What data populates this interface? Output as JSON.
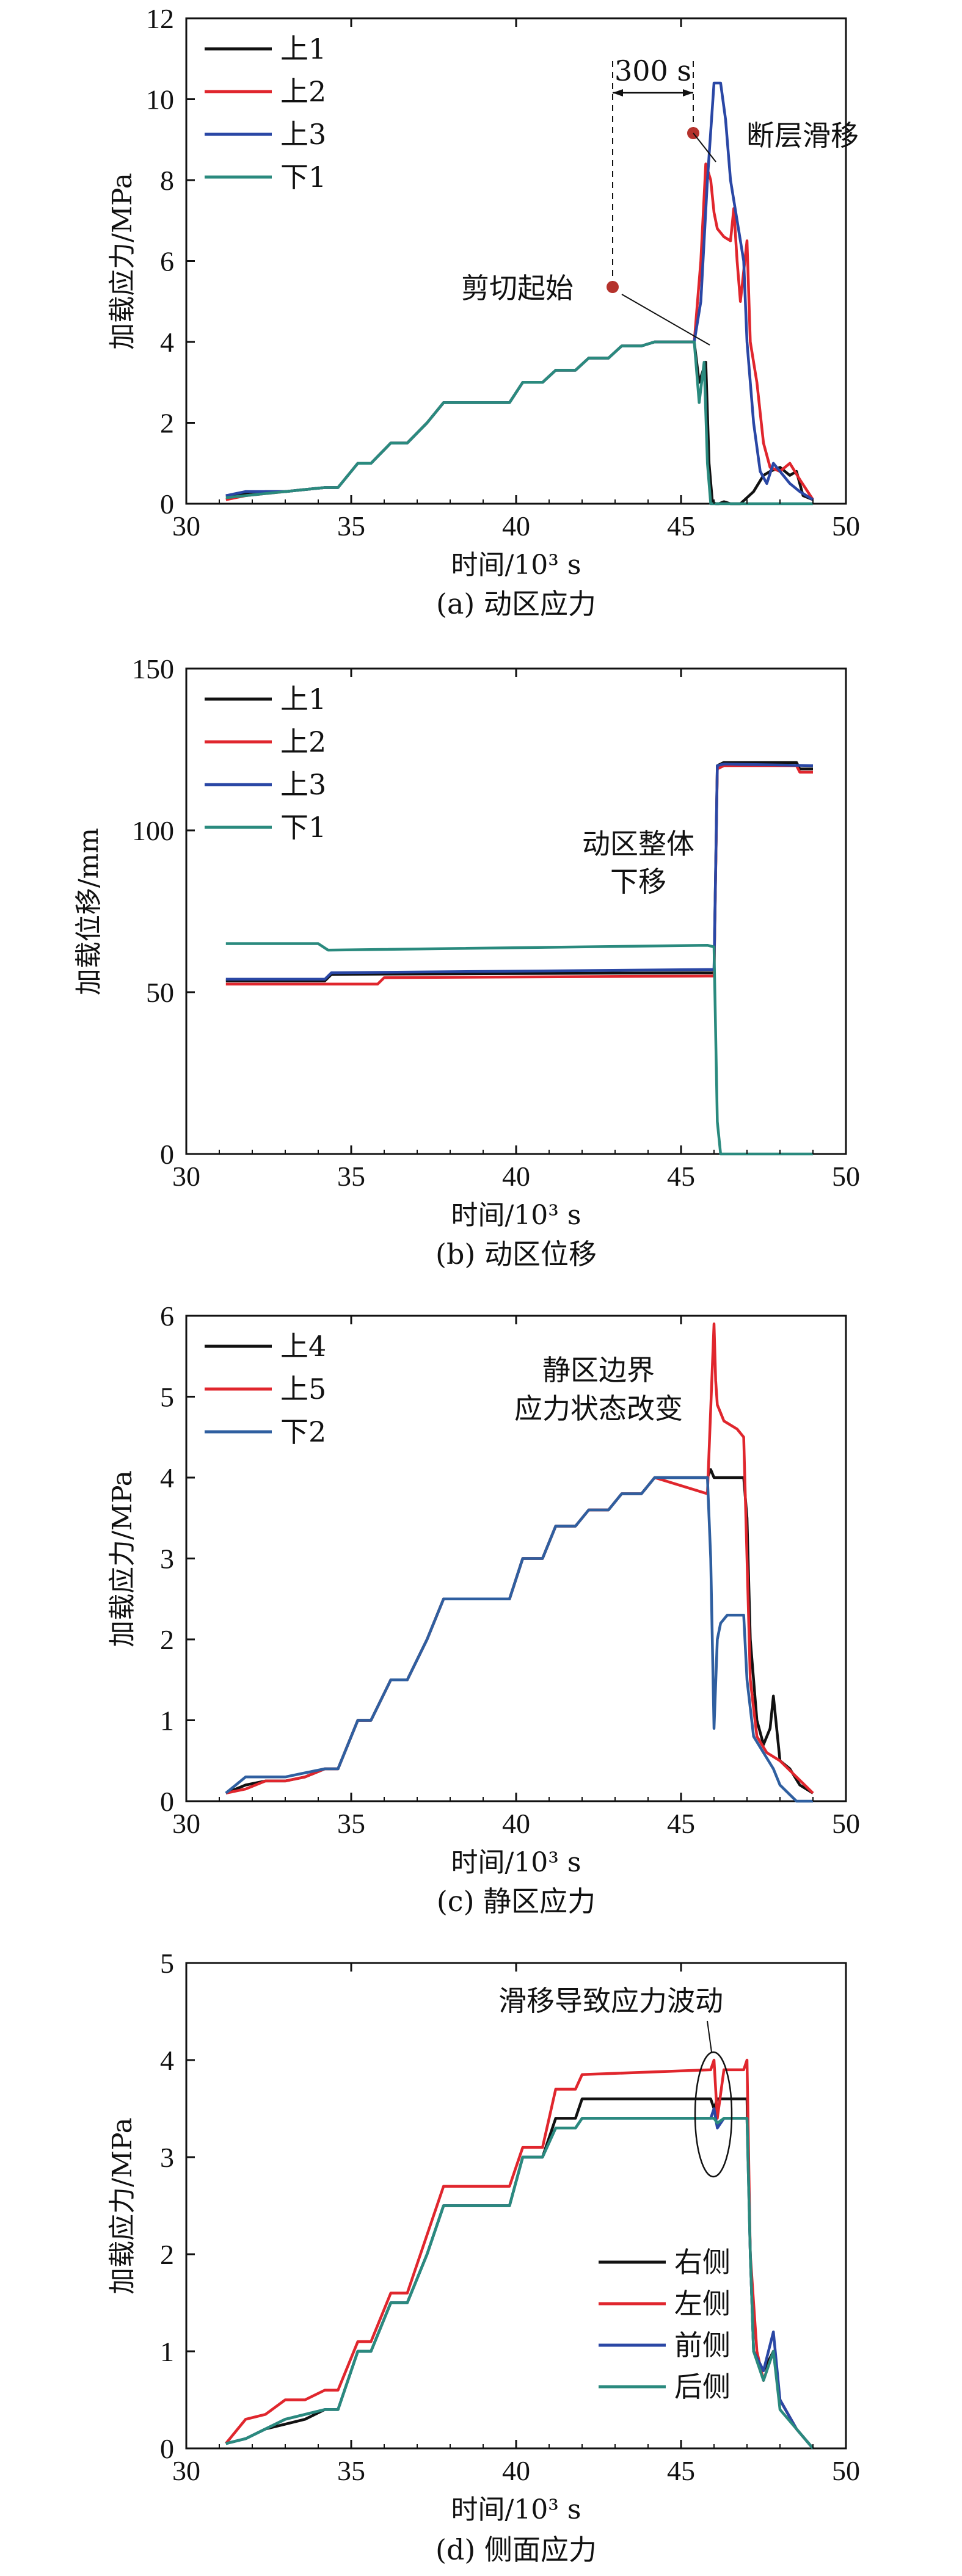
{
  "colors": {
    "上1": "#111111",
    "上2": "#e0262d",
    "上3": "#2a47a5",
    "下1": "#2a8a7e",
    "上4": "#111111",
    "上5": "#e0262d",
    "下2": "#2f5fa0",
    "右侧": "#111111",
    "左侧": "#e0262d",
    "前侧": "#2a47a5",
    "后侧": "#2a8a7e",
    "marker": "#b5322c"
  },
  "chart_data": [
    {
      "type": "line",
      "caption": "(a) 动区应力",
      "xlabel": "时间/10³ s",
      "ylabel": "加载应力/MPa",
      "xlim": [
        30,
        50
      ],
      "ylim": [
        0,
        12
      ],
      "xticks": [
        30,
        35,
        40,
        45,
        50
      ],
      "yticks": [
        0,
        2,
        4,
        6,
        8,
        10,
        12
      ],
      "legend": "top-left",
      "annotations": [
        {
          "text": "300 s"
        },
        {
          "text": "断层滑移"
        },
        {
          "text": "剪切起始"
        }
      ],
      "series": [
        {
          "name": "上1",
          "x": [
            31.2,
            31.8,
            32.4,
            33.0,
            33.6,
            34.2,
            34.6,
            35.2,
            35.6,
            36.2,
            36.7,
            37.3,
            37.8,
            39.8,
            40.2,
            40.8,
            41.2,
            41.8,
            42.2,
            42.8,
            43.2,
            43.8,
            44.2,
            45.4,
            45.55,
            45.75,
            45.85,
            45.95,
            46.05,
            46.15,
            46.3,
            46.5,
            46.8,
            47.2,
            47.5,
            47.7,
            48.0,
            48.3,
            48.5,
            48.7,
            49.0
          ],
          "y": [
            0.2,
            0.25,
            0.3,
            0.3,
            0.35,
            0.4,
            0.4,
            1.0,
            1.0,
            1.5,
            1.5,
            2.0,
            2.5,
            2.5,
            3.0,
            3.0,
            3.3,
            3.3,
            3.6,
            3.6,
            3.9,
            3.9,
            4.0,
            4.0,
            3.0,
            3.5,
            1.0,
            0.05,
            0.0,
            0.0,
            0.05,
            0.0,
            0.0,
            0.3,
            0.7,
            0.8,
            0.9,
            0.7,
            0.8,
            0.2,
            0.1
          ]
        },
        {
          "name": "上2",
          "x": [
            31.2,
            31.8,
            32.4,
            33.0,
            33.6,
            34.2,
            34.6,
            35.2,
            35.6,
            36.2,
            36.7,
            37.3,
            37.8,
            39.8,
            40.2,
            40.8,
            41.2,
            41.8,
            42.2,
            42.8,
            43.2,
            43.8,
            44.2,
            45.4,
            45.6,
            45.75,
            45.9,
            46.0,
            46.1,
            46.3,
            46.5,
            46.6,
            46.7,
            46.8,
            47.0,
            47.1,
            47.3,
            47.5,
            47.7,
            48.0,
            48.3,
            48.6,
            49.0
          ],
          "y": [
            0.1,
            0.2,
            0.25,
            0.3,
            0.35,
            0.4,
            0.4,
            1.0,
            1.0,
            1.5,
            1.5,
            2.0,
            2.5,
            2.5,
            3.0,
            3.0,
            3.3,
            3.3,
            3.6,
            3.6,
            3.9,
            3.9,
            4.0,
            4.0,
            6.0,
            8.4,
            8.0,
            7.2,
            6.8,
            6.6,
            6.5,
            7.3,
            6.0,
            5.0,
            6.5,
            4.0,
            3.0,
            1.5,
            0.9,
            0.8,
            1.0,
            0.6,
            0.1
          ]
        },
        {
          "name": "上3",
          "x": [
            31.2,
            31.8,
            32.4,
            33.0,
            33.6,
            34.2,
            34.6,
            35.2,
            35.6,
            36.2,
            36.7,
            37.3,
            37.8,
            39.8,
            40.2,
            40.8,
            41.2,
            41.8,
            42.2,
            42.8,
            43.2,
            43.8,
            44.2,
            45.4,
            45.6,
            45.8,
            46.0,
            46.2,
            46.35,
            46.5,
            46.7,
            46.9,
            47.0,
            47.2,
            47.4,
            47.6,
            47.8,
            48.0,
            48.3,
            48.6,
            49.0
          ],
          "y": [
            0.2,
            0.3,
            0.3,
            0.3,
            0.35,
            0.4,
            0.4,
            1.0,
            1.0,
            1.5,
            1.5,
            2.0,
            2.5,
            2.5,
            3.0,
            3.0,
            3.3,
            3.3,
            3.6,
            3.6,
            3.9,
            3.9,
            4.0,
            4.0,
            5.0,
            8.0,
            10.4,
            10.4,
            9.5,
            8.0,
            7.0,
            6.0,
            4.0,
            2.0,
            0.8,
            0.5,
            1.0,
            0.8,
            0.5,
            0.3,
            0.1
          ]
        },
        {
          "name": "下1",
          "x": [
            31.2,
            31.8,
            32.4,
            33.0,
            33.6,
            34.2,
            34.6,
            35.2,
            35.6,
            36.2,
            36.7,
            37.3,
            37.8,
            39.8,
            40.2,
            40.8,
            41.2,
            41.8,
            42.2,
            42.8,
            43.2,
            43.8,
            44.2,
            45.4,
            45.55,
            45.7,
            45.8,
            45.9,
            46.0,
            49.0
          ],
          "y": [
            0.15,
            0.2,
            0.25,
            0.3,
            0.35,
            0.4,
            0.4,
            1.0,
            1.0,
            1.5,
            1.5,
            2.0,
            2.5,
            2.5,
            3.0,
            3.0,
            3.3,
            3.3,
            3.6,
            3.6,
            3.9,
            3.9,
            4.0,
            4.0,
            2.5,
            3.5,
            1.0,
            0.0,
            0.0,
            0.0
          ]
        }
      ]
    },
    {
      "type": "line",
      "caption": "(b) 动区位移",
      "xlabel": "时间/10³ s",
      "ylabel": "加载位移/mm",
      "xlim": [
        30,
        50
      ],
      "ylim": [
        0,
        150
      ],
      "xticks": [
        30,
        35,
        40,
        45,
        50
      ],
      "yticks": [
        0,
        50,
        100,
        150
      ],
      "legend": "top-left",
      "annotations": [
        {
          "text": "动区整体"
        },
        {
          "text": "下移"
        }
      ],
      "series": [
        {
          "name": "上1",
          "x": [
            31.2,
            34.2,
            34.4,
            45.8,
            46.0,
            46.1,
            46.3,
            48.5,
            48.6,
            49.0
          ],
          "y": [
            53.5,
            53.5,
            55.5,
            56,
            56,
            120,
            121,
            121,
            119,
            119
          ]
        },
        {
          "name": "上2",
          "x": [
            31.2,
            35.8,
            36.0,
            45.8,
            46.0,
            46.1,
            46.3,
            48.5,
            48.6,
            49.0
          ],
          "y": [
            52.5,
            52.5,
            54.5,
            55,
            55,
            119,
            120,
            120,
            118,
            118
          ]
        },
        {
          "name": "上3",
          "x": [
            31.2,
            34.2,
            34.4,
            45.8,
            46.0,
            46.1,
            46.3,
            49.0
          ],
          "y": [
            54,
            54,
            56,
            57,
            57,
            120,
            120.5,
            120
          ]
        },
        {
          "name": "下1",
          "x": [
            31.2,
            34.0,
            34.3,
            45.8,
            46.0,
            46.1,
            46.2,
            49.0
          ],
          "y": [
            65,
            65,
            63,
            64.5,
            64,
            10,
            0,
            0
          ]
        }
      ]
    },
    {
      "type": "line",
      "caption": "(c) 静区应力",
      "xlabel": "时间/10³ s",
      "ylabel": "加载应力/MPa",
      "xlim": [
        30,
        50
      ],
      "ylim": [
        0,
        6
      ],
      "xticks": [
        30,
        35,
        40,
        45,
        50
      ],
      "yticks": [
        0,
        1,
        2,
        3,
        4,
        5,
        6
      ],
      "legend": "top-left",
      "annotations": [
        {
          "text": "静区边界"
        },
        {
          "text": "应力状态改变"
        }
      ],
      "series": [
        {
          "name": "上4",
          "x": [
            31.2,
            31.8,
            32.4,
            33.0,
            33.6,
            34.2,
            34.6,
            35.2,
            35.6,
            36.2,
            36.7,
            37.3,
            37.8,
            39.8,
            40.2,
            40.8,
            41.2,
            41.8,
            42.2,
            42.8,
            43.2,
            43.8,
            44.2,
            45.8,
            45.9,
            46.0,
            46.2,
            46.9,
            47.0,
            47.1,
            47.3,
            47.5,
            47.7,
            47.8,
            48.0,
            48.3,
            48.6,
            49.0
          ],
          "y": [
            0.1,
            0.2,
            0.25,
            0.25,
            0.3,
            0.4,
            0.4,
            1.0,
            1.0,
            1.5,
            1.5,
            2.0,
            2.5,
            2.5,
            3.0,
            3.0,
            3.4,
            3.4,
            3.6,
            3.6,
            3.8,
            3.8,
            4.0,
            4.0,
            4.1,
            4.0,
            4.0,
            4.0,
            3.5,
            2.0,
            1.0,
            0.7,
            0.9,
            1.3,
            0.5,
            0.4,
            0.2,
            0.1
          ]
        },
        {
          "name": "上5",
          "x": [
            31.2,
            31.8,
            32.4,
            33.0,
            33.6,
            34.2,
            34.6,
            35.2,
            35.6,
            36.2,
            36.7,
            37.3,
            37.8,
            39.8,
            40.2,
            40.8,
            41.2,
            41.8,
            42.2,
            42.8,
            43.2,
            43.8,
            44.2,
            45.8,
            46.0,
            46.05,
            46.1,
            46.2,
            46.3,
            46.5,
            46.7,
            46.9,
            47.0,
            47.1,
            47.3,
            47.6,
            48.0,
            48.5,
            49.0
          ],
          "y": [
            0.1,
            0.15,
            0.25,
            0.25,
            0.3,
            0.4,
            0.4,
            1.0,
            1.0,
            1.5,
            1.5,
            2.0,
            2.5,
            2.5,
            3.0,
            3.0,
            3.4,
            3.4,
            3.6,
            3.6,
            3.8,
            3.8,
            4.0,
            3.8,
            5.9,
            5.2,
            4.9,
            4.8,
            4.7,
            4.65,
            4.6,
            4.5,
            3.0,
            1.5,
            0.8,
            0.6,
            0.5,
            0.3,
            0.1
          ]
        },
        {
          "name": "下2",
          "x": [
            31.2,
            31.8,
            32.4,
            33.0,
            33.6,
            34.2,
            34.6,
            35.2,
            35.6,
            36.2,
            36.7,
            37.3,
            37.8,
            39.8,
            40.2,
            40.8,
            41.2,
            41.8,
            42.2,
            42.8,
            43.2,
            43.8,
            44.2,
            45.8,
            45.9,
            46.0,
            46.1,
            46.2,
            46.4,
            46.6,
            46.9,
            47.0,
            47.2,
            47.5,
            47.8,
            48.0,
            48.5,
            49.0
          ],
          "y": [
            0.1,
            0.3,
            0.3,
            0.3,
            0.35,
            0.4,
            0.4,
            1.0,
            1.0,
            1.5,
            1.5,
            2.0,
            2.5,
            2.5,
            3.0,
            3.0,
            3.4,
            3.4,
            3.6,
            3.6,
            3.8,
            3.8,
            4.0,
            4.0,
            3.0,
            0.9,
            2.0,
            2.2,
            2.3,
            2.3,
            2.3,
            1.5,
            0.8,
            0.6,
            0.4,
            0.2,
            0.0,
            0.0
          ]
        }
      ]
    },
    {
      "type": "line",
      "caption": "(d) 侧面应力",
      "xlabel": "时间/10³ s",
      "ylabel": "加载应力/MPa",
      "xlim": [
        30,
        50
      ],
      "ylim": [
        0,
        5
      ],
      "xticks": [
        30,
        35,
        40,
        45,
        50
      ],
      "yticks": [
        0,
        1,
        2,
        3,
        4,
        5
      ],
      "legend": "bottom-right",
      "annotations": [
        {
          "text": "滑移导致应力波动"
        }
      ],
      "series": [
        {
          "name": "右侧",
          "x": [
            31.2,
            31.8,
            32.4,
            33.0,
            33.6,
            34.2,
            34.6,
            35.2,
            35.6,
            36.2,
            36.7,
            37.3,
            37.8,
            39.8,
            40.2,
            40.8,
            41.2,
            41.8,
            42.0,
            45.9,
            46.0,
            46.1,
            46.3,
            47.0,
            47.1,
            47.2,
            47.5,
            47.8,
            48.0,
            48.5,
            49.0
          ],
          "y": [
            0.05,
            0.1,
            0.2,
            0.25,
            0.3,
            0.4,
            0.4,
            1.0,
            1.0,
            1.5,
            1.5,
            2.0,
            2.5,
            2.5,
            3.0,
            3.0,
            3.4,
            3.4,
            3.6,
            3.6,
            3.5,
            3.6,
            3.6,
            3.6,
            2.0,
            1.0,
            0.8,
            1.0,
            0.5,
            0.2,
            0.0
          ]
        },
        {
          "name": "左侧",
          "x": [
            31.2,
            31.8,
            32.4,
            33.0,
            33.6,
            34.2,
            34.6,
            35.2,
            35.6,
            36.2,
            36.7,
            37.3,
            37.8,
            39.8,
            40.2,
            40.8,
            41.2,
            41.8,
            42.0,
            45.9,
            46.0,
            46.1,
            46.3,
            46.9,
            47.0,
            47.1,
            47.3,
            47.5,
            47.8,
            48.0,
            48.5,
            49.0
          ],
          "y": [
            0.05,
            0.3,
            0.35,
            0.5,
            0.5,
            0.6,
            0.6,
            1.1,
            1.1,
            1.6,
            1.6,
            2.2,
            2.7,
            2.7,
            3.1,
            3.1,
            3.7,
            3.7,
            3.85,
            3.9,
            4.0,
            3.4,
            3.9,
            3.9,
            4.0,
            2.0,
            1.0,
            0.7,
            1.0,
            0.5,
            0.2,
            0.0
          ]
        },
        {
          "name": "前侧",
          "x": [
            31.2,
            31.8,
            32.4,
            33.0,
            33.6,
            34.2,
            34.6,
            35.2,
            35.6,
            36.2,
            36.7,
            37.3,
            37.8,
            39.8,
            40.2,
            40.8,
            41.2,
            41.8,
            42.0,
            45.9,
            46.0,
            46.1,
            46.3,
            47.0,
            47.1,
            47.2,
            47.5,
            47.8,
            48.0,
            48.5,
            49.0
          ],
          "y": [
            0.05,
            0.1,
            0.2,
            0.3,
            0.35,
            0.4,
            0.4,
            1.0,
            1.0,
            1.5,
            1.5,
            2.0,
            2.5,
            2.5,
            3.0,
            3.0,
            3.3,
            3.3,
            3.4,
            3.4,
            3.5,
            3.3,
            3.4,
            3.4,
            2.0,
            1.0,
            0.8,
            1.2,
            0.5,
            0.2,
            0.0
          ]
        },
        {
          "name": "后侧",
          "x": [
            31.2,
            31.8,
            32.4,
            33.0,
            33.6,
            34.2,
            34.6,
            35.2,
            35.6,
            36.2,
            36.7,
            37.3,
            37.8,
            39.8,
            40.2,
            40.8,
            41.2,
            41.8,
            42.0,
            45.9,
            46.0,
            46.1,
            46.3,
            47.0,
            47.1,
            47.2,
            47.5,
            47.8,
            48.0,
            48.5,
            49.0
          ],
          "y": [
            0.05,
            0.1,
            0.2,
            0.3,
            0.35,
            0.4,
            0.4,
            1.0,
            1.0,
            1.5,
            1.5,
            2.0,
            2.5,
            2.5,
            3.0,
            3.0,
            3.3,
            3.3,
            3.4,
            3.4,
            3.4,
            3.35,
            3.4,
            3.4,
            2.0,
            1.0,
            0.7,
            1.0,
            0.4,
            0.2,
            0.0
          ]
        }
      ]
    }
  ]
}
